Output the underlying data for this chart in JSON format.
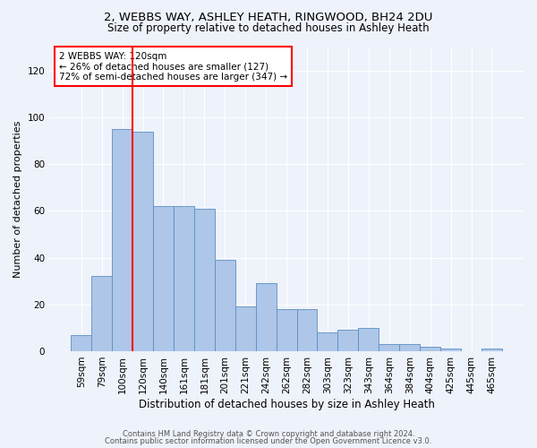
{
  "title_line1": "2, WEBBS WAY, ASHLEY HEATH, RINGWOOD, BH24 2DU",
  "title_line2": "Size of property relative to detached houses in Ashley Heath",
  "xlabel": "Distribution of detached houses by size in Ashley Heath",
  "ylabel": "Number of detached properties",
  "bar_labels": [
    "59sqm",
    "79sqm",
    "100sqm",
    "120sqm",
    "140sqm",
    "161sqm",
    "181sqm",
    "201sqm",
    "221sqm",
    "242sqm",
    "262sqm",
    "282sqm",
    "303sqm",
    "323sqm",
    "343sqm",
    "364sqm",
    "384sqm",
    "404sqm",
    "425sqm",
    "445sqm",
    "465sqm"
  ],
  "bar_values": [
    7,
    32,
    95,
    94,
    62,
    62,
    61,
    39,
    19,
    29,
    18,
    18,
    8,
    9,
    10,
    3,
    3,
    2,
    1,
    0,
    1
  ],
  "bar_color": "#aec6e8",
  "bar_edge_color": "#5a8fc2",
  "annotation_text": "2 WEBBS WAY: 120sqm\n← 26% of detached houses are smaller (127)\n72% of semi-detached houses are larger (347) →",
  "annotation_box_color": "white",
  "annotation_box_edge_color": "red",
  "vline_color": "red",
  "ylim": [
    0,
    130
  ],
  "yticks": [
    0,
    20,
    40,
    60,
    80,
    100,
    120
  ],
  "background_color": "#eef2fa",
  "footer_line1": "Contains HM Land Registry data © Crown copyright and database right 2024.",
  "footer_line2": "Contains public sector information licensed under the Open Government Licence v3.0."
}
